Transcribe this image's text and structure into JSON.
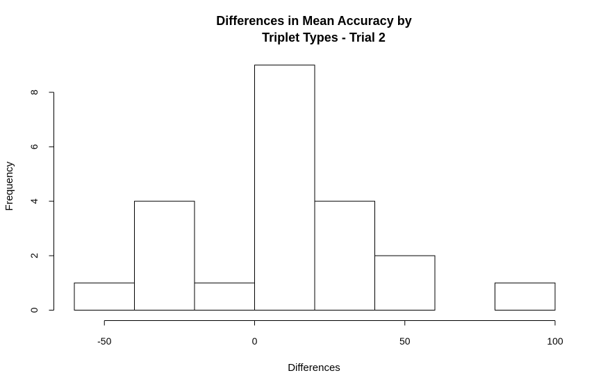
{
  "chart_data": {
    "type": "bar",
    "subtype": "histogram",
    "title_lines": [
      "Differences in Mean Accuracy by",
      "Triplet Types - Trial 2"
    ],
    "xlabel": "Differences",
    "ylabel": "Frequency",
    "bins": [
      {
        "start": -60,
        "end": -40,
        "count": 1
      },
      {
        "start": -40,
        "end": -20,
        "count": 4
      },
      {
        "start": -20,
        "end": 0,
        "count": 1
      },
      {
        "start": 0,
        "end": 20,
        "count": 9
      },
      {
        "start": 20,
        "end": 40,
        "count": 4
      },
      {
        "start": 40,
        "end": 60,
        "count": 2
      },
      {
        "start": 60,
        "end": 80,
        "count": 0
      },
      {
        "start": 80,
        "end": 100,
        "count": 1
      }
    ],
    "x_ticks": [
      -50,
      0,
      50,
      100
    ],
    "y_ticks": [
      0,
      2,
      4,
      6,
      8
    ],
    "xlim": [
      -60,
      100
    ],
    "ylim": [
      0,
      9
    ],
    "grid": false,
    "bar_fill": "#ffffff",
    "bar_stroke": "#000000"
  }
}
